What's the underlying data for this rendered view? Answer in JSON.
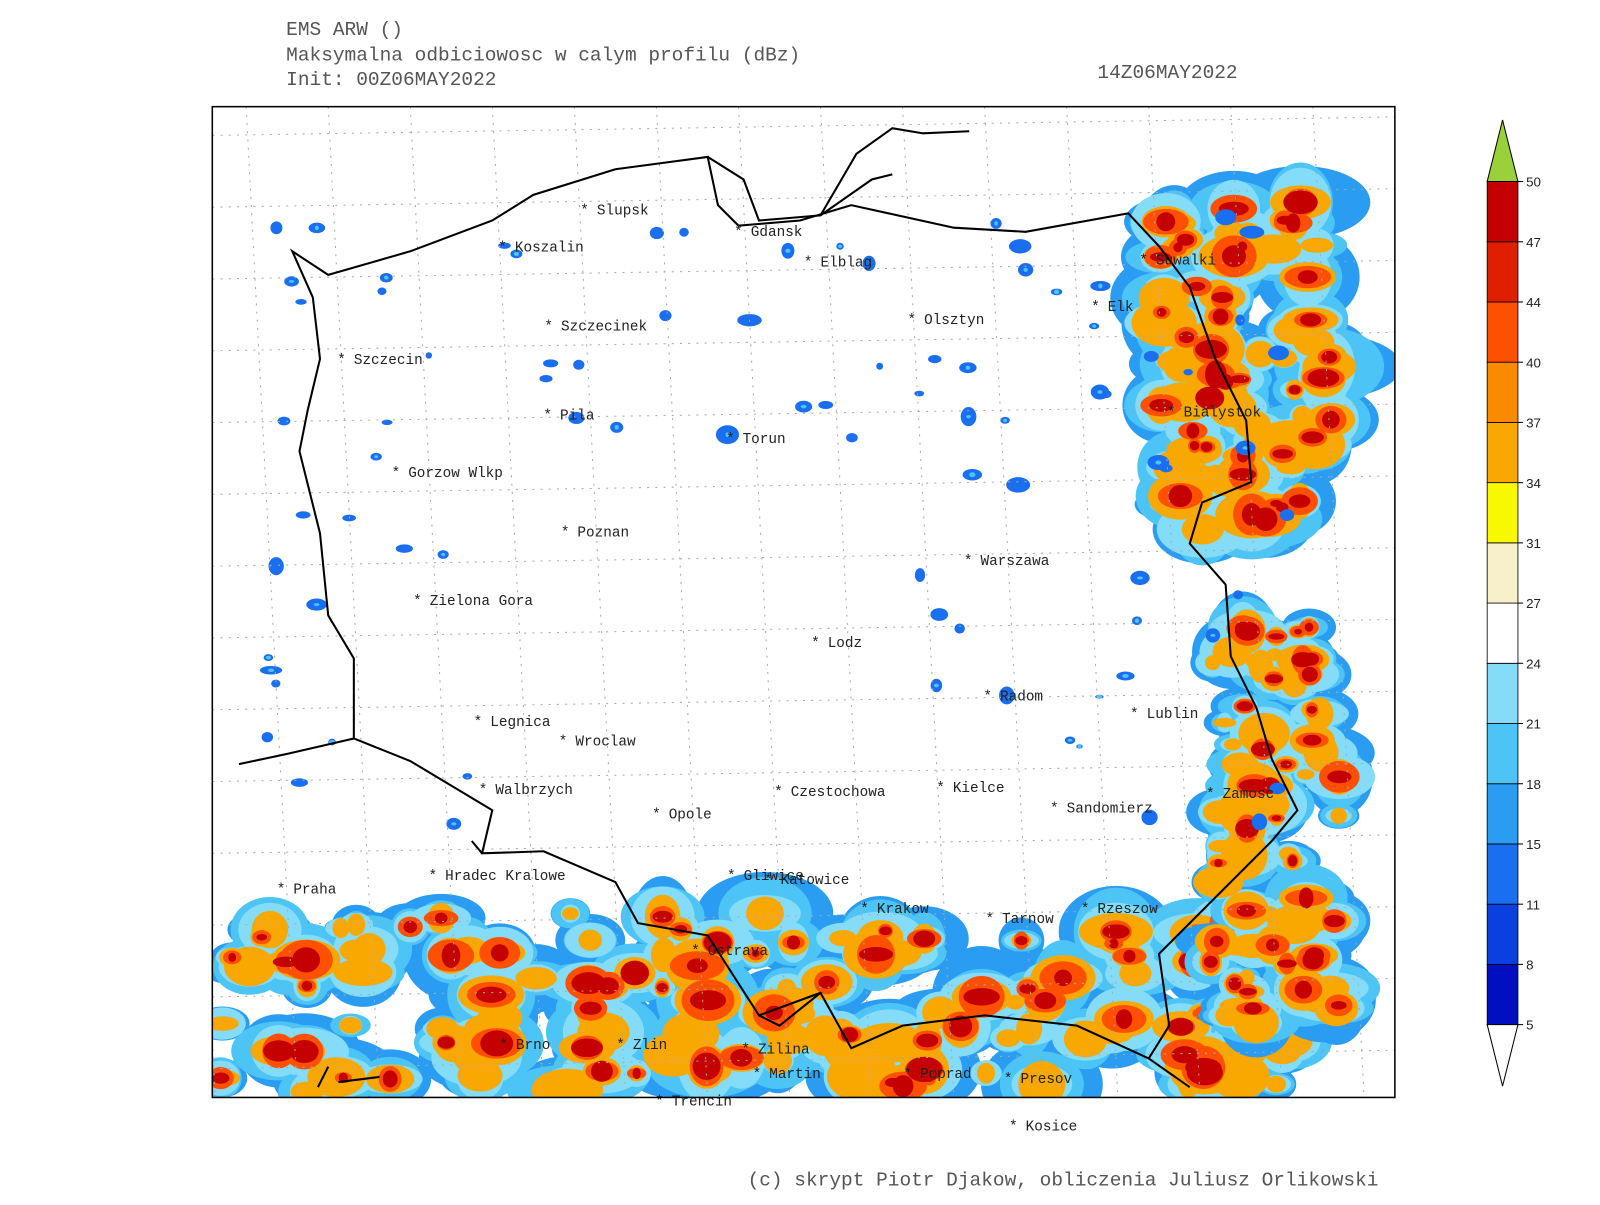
{
  "header": {
    "model": "EMS ARW ()",
    "title": "Maksymalna odbiciowosc w calym profilu (dBz)",
    "init": "Init: 00Z06MAY2022",
    "valid": "14Z06MAY2022"
  },
  "cities": [
    "Slupsk",
    "Koszalin",
    "Gdansk",
    "Elblag",
    "Szczecinek",
    "Olsztyn",
    "Suwalki",
    "Elk",
    "Szczecin",
    "Pila",
    "Torun",
    "Bialystok",
    "Gorzow Wlkp",
    "Poznan",
    "Warszawa",
    "Zielona Gora",
    "Lodz",
    "Radom",
    "Lublin",
    "Legnica",
    "Wroclaw",
    "Walbrzych",
    "Czestochowa",
    "Kielce",
    "Zamosc",
    "Sandomierz",
    "Opole",
    "Praha",
    "Hradec Kralowe",
    "Gliwice",
    "Katowice",
    "Krakow",
    "Rzeszow",
    "Tarnow",
    "Ostrava",
    "Brno",
    "Zlin",
    "Zilina",
    "Martin",
    "Poprad",
    "Presov",
    "Trencin",
    "Kosice"
  ],
  "colorbar": {
    "ticks": [
      5,
      8,
      11,
      15,
      18,
      21,
      24,
      27,
      31,
      34,
      37,
      40,
      44,
      47,
      50
    ],
    "colors": [
      "#0010c0",
      "#0a40e0",
      "#1a6ef0",
      "#2a9cf2",
      "#4cc4f6",
      "#84dcf8",
      "#ffffff",
      "#f8f0c8",
      "#f8f800",
      "#f8a800",
      "#fa8a00",
      "#ff5000",
      "#e01e00",
      "#c40000"
    ],
    "over_color": "#9ad13a",
    "under_color": "#ffffff"
  },
  "footer": "(c) skrypt Piotr Djakow, obliczenia Juliusz Orlikowski"
}
